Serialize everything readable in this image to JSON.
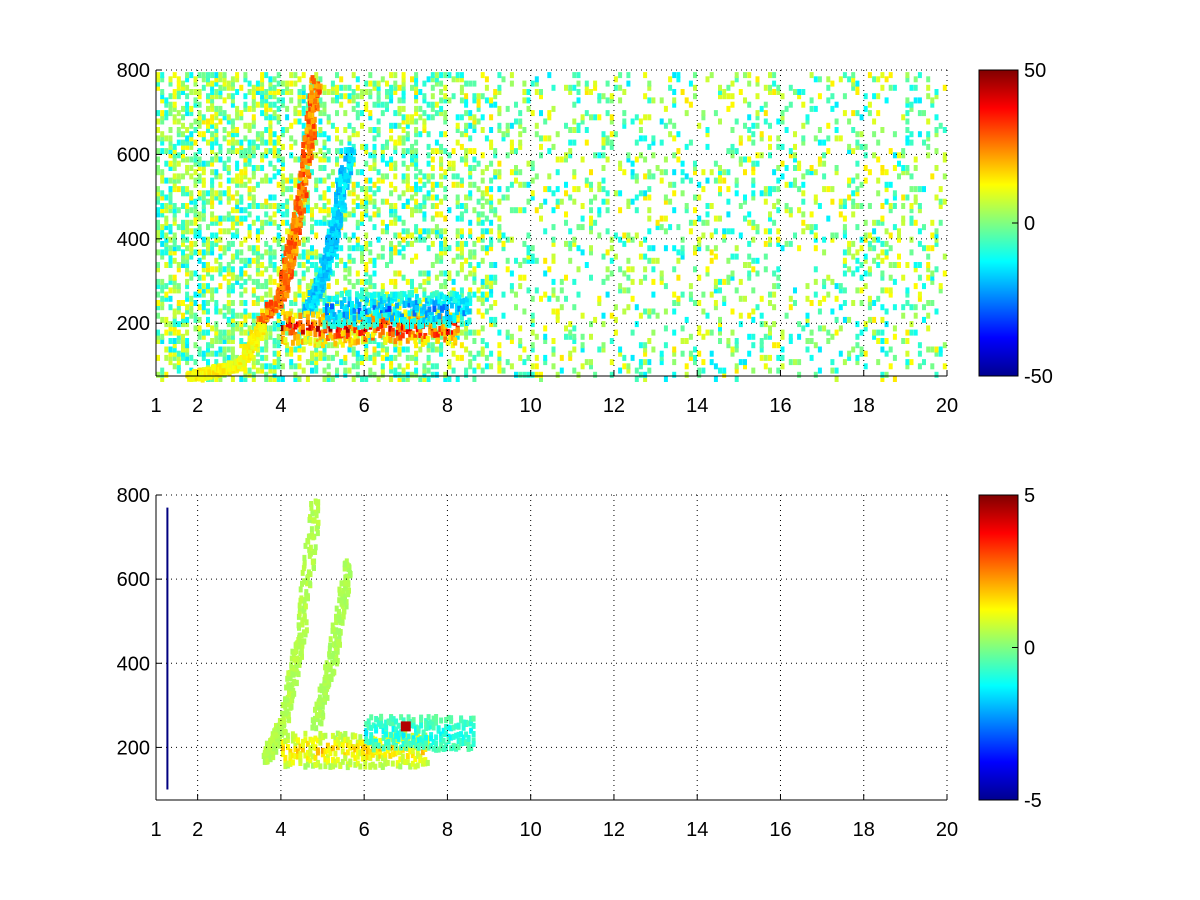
{
  "chart_data": [
    {
      "type": "heatmap",
      "title": "",
      "xlabel": "",
      "ylabel": "",
      "xlim": [
        1,
        20
      ],
      "ylim": [
        75,
        800
      ],
      "x_ticks": [
        "1",
        "2",
        "4",
        "6",
        "8",
        "10",
        "12",
        "14",
        "16",
        "18",
        "20"
      ],
      "y_ticks": [
        "200",
        "400",
        "600",
        "800"
      ],
      "grid": true,
      "colormap": "jet",
      "colorbar": {
        "range": [
          -50,
          50
        ],
        "tick_labels": [
          "50",
          "0",
          "-50"
        ]
      },
      "features": [
        {
          "kind": "curve",
          "value": 30,
          "points": [
            [
              3.5,
              210
            ],
            [
              4.0,
              280
            ],
            [
              4.3,
              420
            ],
            [
              4.6,
              620
            ],
            [
              4.8,
              780
            ]
          ]
        },
        {
          "kind": "curve",
          "value": -20,
          "points": [
            [
              4.6,
              230
            ],
            [
              5.0,
              330
            ],
            [
              5.3,
              450
            ],
            [
              5.6,
              620
            ]
          ]
        },
        {
          "kind": "band",
          "value": 45,
          "x": [
            4.0,
            8.2
          ],
          "y": 195
        },
        {
          "kind": "band",
          "value": -30,
          "x": [
            5.0,
            8.5
          ],
          "y": 240
        },
        {
          "kind": "curve",
          "value": 15,
          "points": [
            [
              1.8,
              80
            ],
            [
              2.5,
              95
            ],
            [
              3.0,
              110
            ],
            [
              3.5,
              200
            ]
          ]
        }
      ]
    },
    {
      "type": "heatmap",
      "title": "",
      "xlabel": "",
      "ylabel": "",
      "xlim": [
        1,
        20
      ],
      "ylim": [
        75,
        800
      ],
      "x_ticks": [
        "1",
        "2",
        "4",
        "6",
        "8",
        "10",
        "12",
        "14",
        "16",
        "18",
        "20"
      ],
      "y_ticks": [
        "200",
        "400",
        "600",
        "800"
      ],
      "grid": true,
      "colormap": "jet",
      "colorbar": {
        "range": [
          -5,
          5
        ],
        "tick_labels": [
          "5",
          "0",
          "-5"
        ]
      },
      "features": [
        {
          "kind": "curve",
          "value": 0.6,
          "points": [
            [
              3.6,
              180
            ],
            [
              4.0,
              260
            ],
            [
              4.4,
              450
            ],
            [
              4.8,
              790
            ]
          ]
        },
        {
          "kind": "curve",
          "value": 0.5,
          "points": [
            [
              4.8,
              260
            ],
            [
              5.2,
              420
            ],
            [
              5.6,
              650
            ]
          ]
        },
        {
          "kind": "band",
          "value": 2.0,
          "x": [
            4.0,
            7.5
          ],
          "y": 200
        },
        {
          "kind": "band",
          "value": -1.5,
          "x": [
            6.0,
            8.6
          ],
          "y": 240
        },
        {
          "kind": "spot",
          "value": 4.5,
          "x": 7.0,
          "y": 250
        },
        {
          "kind": "vline",
          "value": -5,
          "x": 1.25,
          "y": [
            100,
            770
          ]
        }
      ]
    }
  ]
}
